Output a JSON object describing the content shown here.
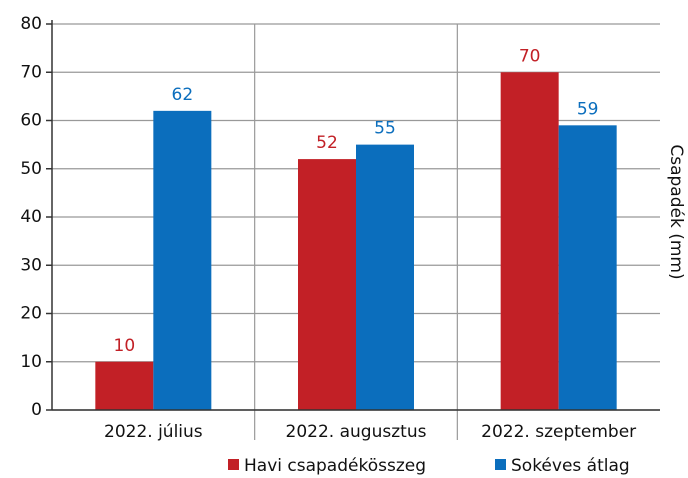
{
  "chart_data": {
    "type": "bar",
    "y_label": "Csapadék (mm)",
    "categories": [
      "2022. július",
      "2022. augusztus",
      "2022. szeptember"
    ],
    "series": [
      {
        "name": "Havi csapadékösszeg",
        "color": "#c22026",
        "values": [
          10,
          52,
          70
        ]
      },
      {
        "name": "Sokéves átlag",
        "color": "#0b6ebd",
        "values": [
          62,
          55,
          59
        ]
      }
    ],
    "ylim": [
      0,
      80
    ],
    "yticks": [
      0,
      10,
      20,
      30,
      40,
      50,
      60,
      70,
      80
    ],
    "grid": true,
    "legend": "bottom-right"
  }
}
